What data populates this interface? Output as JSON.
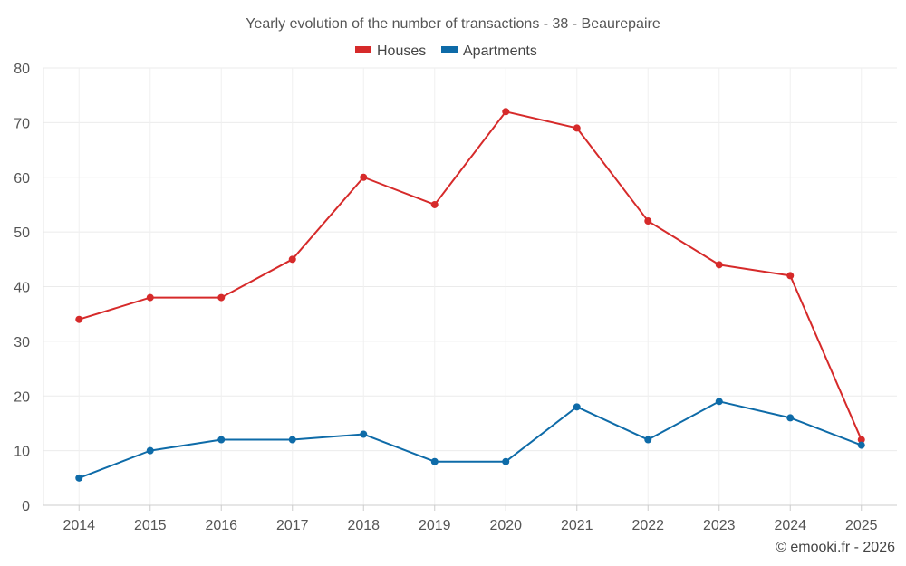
{
  "chart_data": {
    "type": "line",
    "title": "Yearly evolution of the number of transactions - 38 - Beaurepaire",
    "categories": [
      "2014",
      "2015",
      "2016",
      "2017",
      "2018",
      "2019",
      "2020",
      "2021",
      "2022",
      "2023",
      "2024",
      "2025"
    ],
    "series": [
      {
        "name": "Houses",
        "color": "#d62a2a",
        "values": [
          34,
          38,
          38,
          45,
          60,
          55,
          72,
          69,
          52,
          44,
          42,
          12
        ]
      },
      {
        "name": "Apartments",
        "color": "#0e6ba8",
        "values": [
          5,
          10,
          12,
          12,
          13,
          8,
          8,
          18,
          12,
          19,
          16,
          11
        ]
      }
    ],
    "ylim": [
      0,
      80
    ],
    "yticks": [
      "0",
      "10",
      "20",
      "30",
      "40",
      "50",
      "60",
      "70",
      "80"
    ],
    "xlabel": "",
    "ylabel": "",
    "grid": true,
    "legend_position": "top-center"
  },
  "credit": "© emooki.fr - 2026"
}
